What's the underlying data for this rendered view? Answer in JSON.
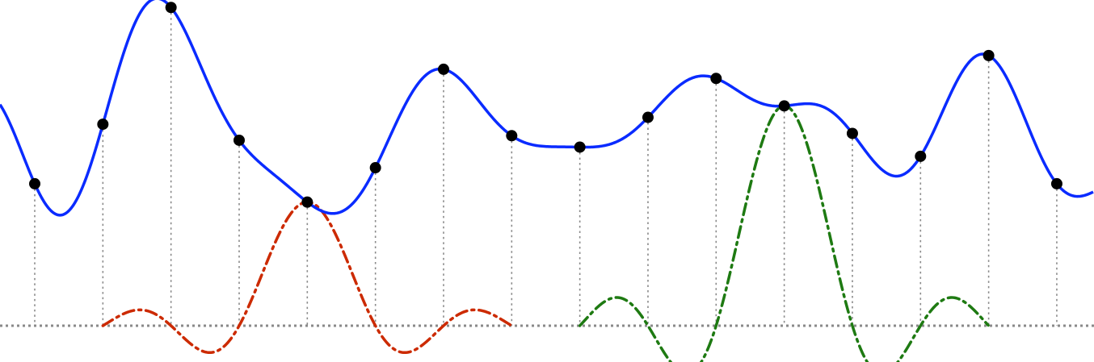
{
  "diagram": {
    "kind": "sinc-interpolation",
    "colors": {
      "signal": "#0a2bff",
      "kernel_a": "#cc2a00",
      "kernel_b": "#1e7a12",
      "guides": "#8a8a8a",
      "samples": "#000000"
    },
    "sample_values": [
      0.62,
      0.88,
      1.39,
      0.81,
      0.54,
      0.69,
      1.12,
      0.83,
      0.78,
      0.91,
      1.08,
      0.96,
      0.84,
      0.74,
      1.18,
      0.62
    ],
    "signal_extrapolation": {
      "left_value": 0.94,
      "right_value": 0.61
    },
    "baseline_value": 0,
    "highlighted_kernels": [
      {
        "id": "kernel-at-sample-4",
        "center_index": 4,
        "support_start_index": 1,
        "support_end_index": 7,
        "color_key": "kernel_a"
      },
      {
        "id": "kernel-at-sample-11",
        "center_index": 11,
        "support_start_index": 8,
        "support_end_index": 14,
        "color_key": "kernel_b"
      }
    ]
  }
}
